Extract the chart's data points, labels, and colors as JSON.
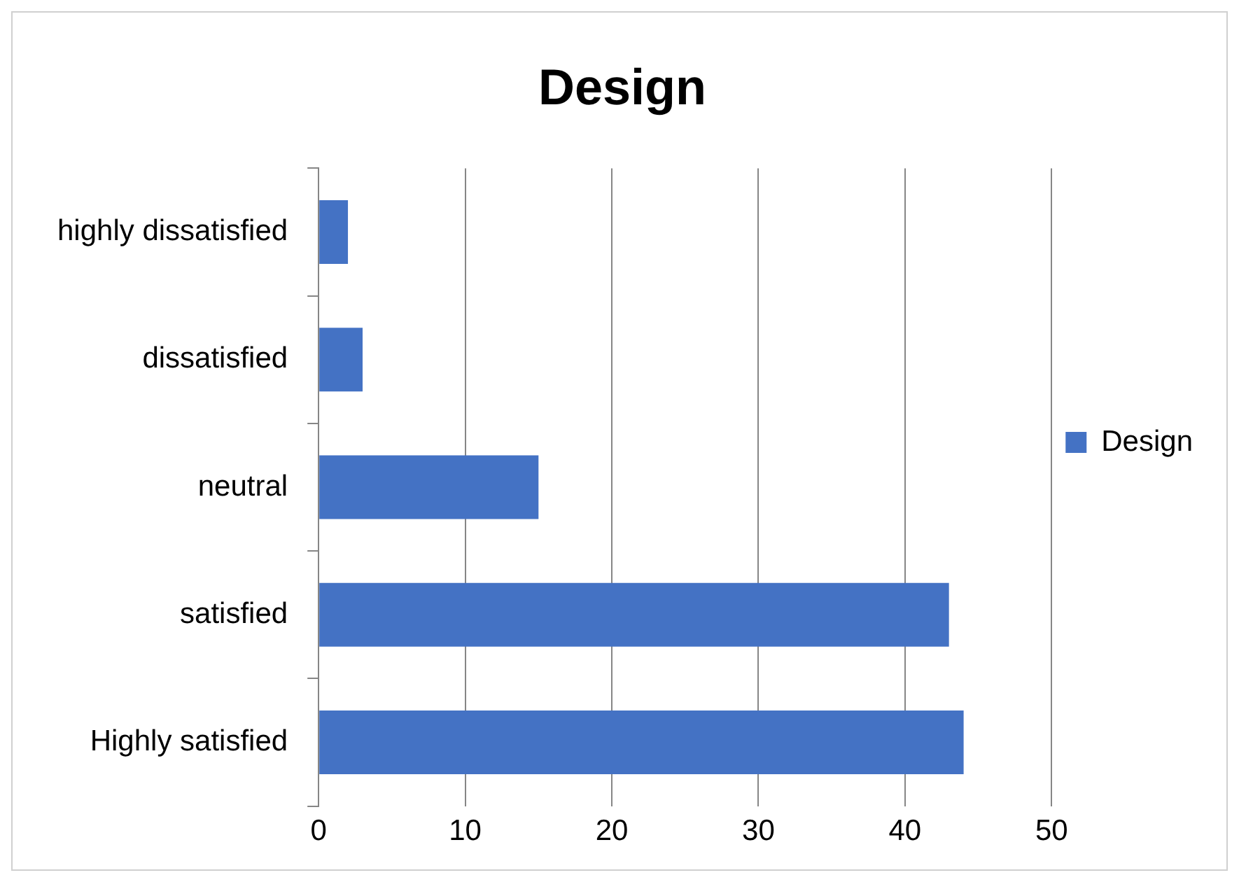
{
  "chart_data": {
    "type": "bar",
    "orientation": "horizontal",
    "title": "Design",
    "categories": [
      "highly dissatisfied",
      "dissatisfied",
      "neutral",
      "satisfied",
      "Highly satisfied"
    ],
    "series": [
      {
        "name": "Design",
        "color": "#4472c4",
        "values": [
          2,
          3,
          15,
          43,
          44
        ]
      }
    ],
    "xlim": [
      0,
      50
    ],
    "xticks": [
      0,
      10,
      20,
      30,
      40,
      50
    ],
    "grid": "x",
    "legend": "right"
  }
}
